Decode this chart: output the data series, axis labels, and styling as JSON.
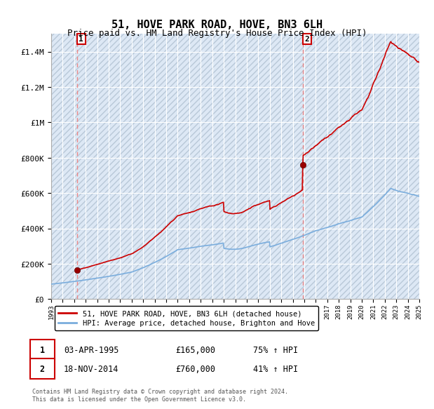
{
  "title": "51, HOVE PARK ROAD, HOVE, BN3 6LH",
  "subtitle": "Price paid vs. HM Land Registry's House Price Index (HPI)",
  "title_fontsize": 11,
  "subtitle_fontsize": 9,
  "ylim": [
    0,
    1500000
  ],
  "yticks": [
    0,
    200000,
    400000,
    600000,
    800000,
    1000000,
    1200000,
    1400000
  ],
  "ytick_labels": [
    "£0",
    "£200K",
    "£400K",
    "£600K",
    "£800K",
    "£1M",
    "£1.2M",
    "£1.4M"
  ],
  "x_start_year": 1993,
  "x_end_year": 2025,
  "background_color": "#ffffff",
  "plot_bg_color": "#dde8f5",
  "grid_color": "#ffffff",
  "hatch_color": "#b8c8d8",
  "sale1_date": 1995.25,
  "sale1_price": 165000,
  "sale2_date": 2014.88,
  "sale2_price": 760000,
  "legend_label_red": "51, HOVE PARK ROAD, HOVE, BN3 6LH (detached house)",
  "legend_label_blue": "HPI: Average price, detached house, Brighton and Hove",
  "annotation1_label": "1",
  "annotation2_label": "2",
  "table_row1": [
    "1",
    "03-APR-1995",
    "£165,000",
    "75% ↑ HPI"
  ],
  "table_row2": [
    "2",
    "18-NOV-2014",
    "£760,000",
    "41% ↑ HPI"
  ],
  "footnote": "Contains HM Land Registry data © Crown copyright and database right 2024.\nThis data is licensed under the Open Government Licence v3.0.",
  "line_color_red": "#cc0000",
  "line_color_blue": "#7aaddd",
  "marker_color_red": "#990000",
  "vline_color": "#ee8888",
  "box_color": "#cc0000"
}
